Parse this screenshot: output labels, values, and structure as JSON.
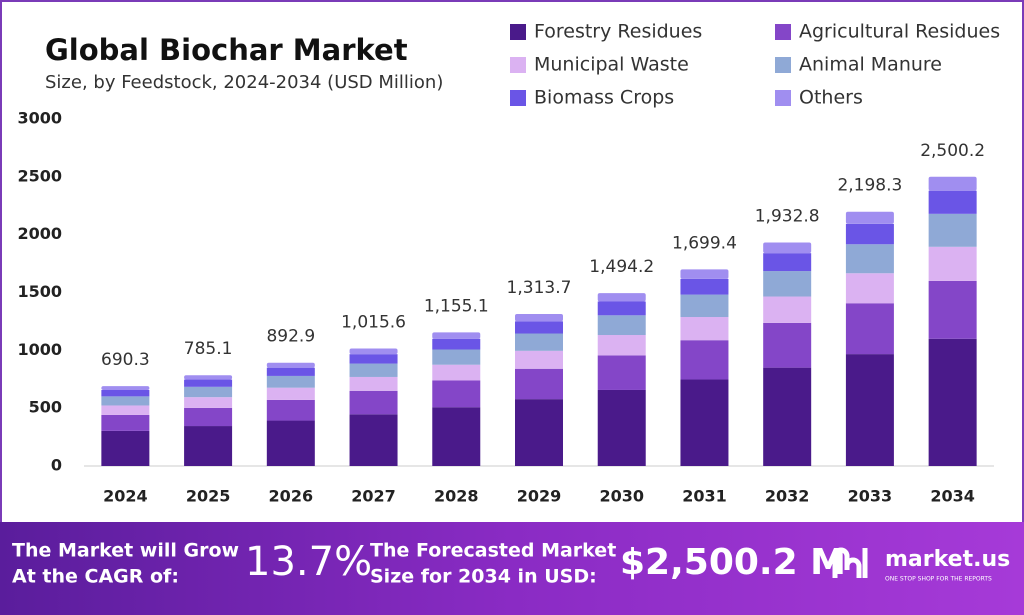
{
  "chart_data": {
    "type": "stacked_bar",
    "title": "Global Biochar Market",
    "subtitle": "Size, by Feedstock, 2024-2034 (USD Million)",
    "categories": [
      "2024",
      "2025",
      "2026",
      "2027",
      "2028",
      "2029",
      "2030",
      "2031",
      "2032",
      "2033",
      "2034"
    ],
    "series": [
      {
        "name": "Forestry Residues",
        "color": "#4a1a8a",
        "values": [
          303.7,
          345.4,
          392.9,
          446.9,
          508.2,
          578.0,
          657.4,
          747.7,
          850.4,
          967.3,
          1100.1
        ]
      },
      {
        "name": "Agricultural Residues",
        "color": "#8446c8",
        "values": [
          138.1,
          157.0,
          178.6,
          203.1,
          231.0,
          262.7,
          298.8,
          339.9,
          386.6,
          439.7,
          500.0
        ]
      },
      {
        "name": "Municipal Waste",
        "color": "#dbb2f2",
        "values": [
          81.5,
          92.6,
          105.4,
          119.8,
          136.3,
          155.0,
          176.3,
          200.5,
          228.1,
          259.4,
          295.0
        ]
      },
      {
        "name": "Animal Manure",
        "color": "#8fa9d6",
        "values": [
          78.7,
          89.5,
          101.8,
          115.8,
          131.7,
          149.8,
          170.3,
          193.7,
          220.3,
          250.6,
          285.0
        ]
      },
      {
        "name": "Biomass Crops",
        "color": "#6a55e6",
        "values": [
          55.2,
          62.8,
          71.4,
          81.2,
          92.4,
          105.1,
          119.5,
          136.0,
          154.6,
          175.9,
          200.0
        ]
      },
      {
        "name": "Others",
        "color": "#a08ef0",
        "values": [
          33.1,
          37.8,
          42.8,
          48.8,
          55.5,
          63.1,
          71.9,
          81.6,
          92.8,
          105.4,
          120.1
        ]
      }
    ],
    "totals": [
      690.3,
      785.1,
      892.9,
      1015.6,
      1155.1,
      1313.7,
      1494.2,
      1699.4,
      1932.8,
      2198.3,
      2500.2
    ],
    "total_labels": [
      "690.3",
      "785.1",
      "892.9",
      "1,015.6",
      "1,155.1",
      "1,313.7",
      "1,494.2",
      "1,699.4",
      "1,932.8",
      "2,198.3",
      "2,500.2"
    ],
    "ylim": [
      0,
      3000
    ],
    "yticks": [
      0,
      500,
      1000,
      1500,
      2000,
      2500,
      3000
    ],
    "grid": false
  },
  "footer": {
    "cagr_label": [
      "The Market will Grow",
      "At the CAGR of:"
    ],
    "cagr_value": "13.7%",
    "forecast_label": [
      "The Forecasted Market",
      "Size for 2034 in USD:"
    ],
    "forecast_value": "$2,500.2 M",
    "brand": "market.us",
    "tagline": "ONE STOP SHOP FOR THE REPORTS"
  }
}
